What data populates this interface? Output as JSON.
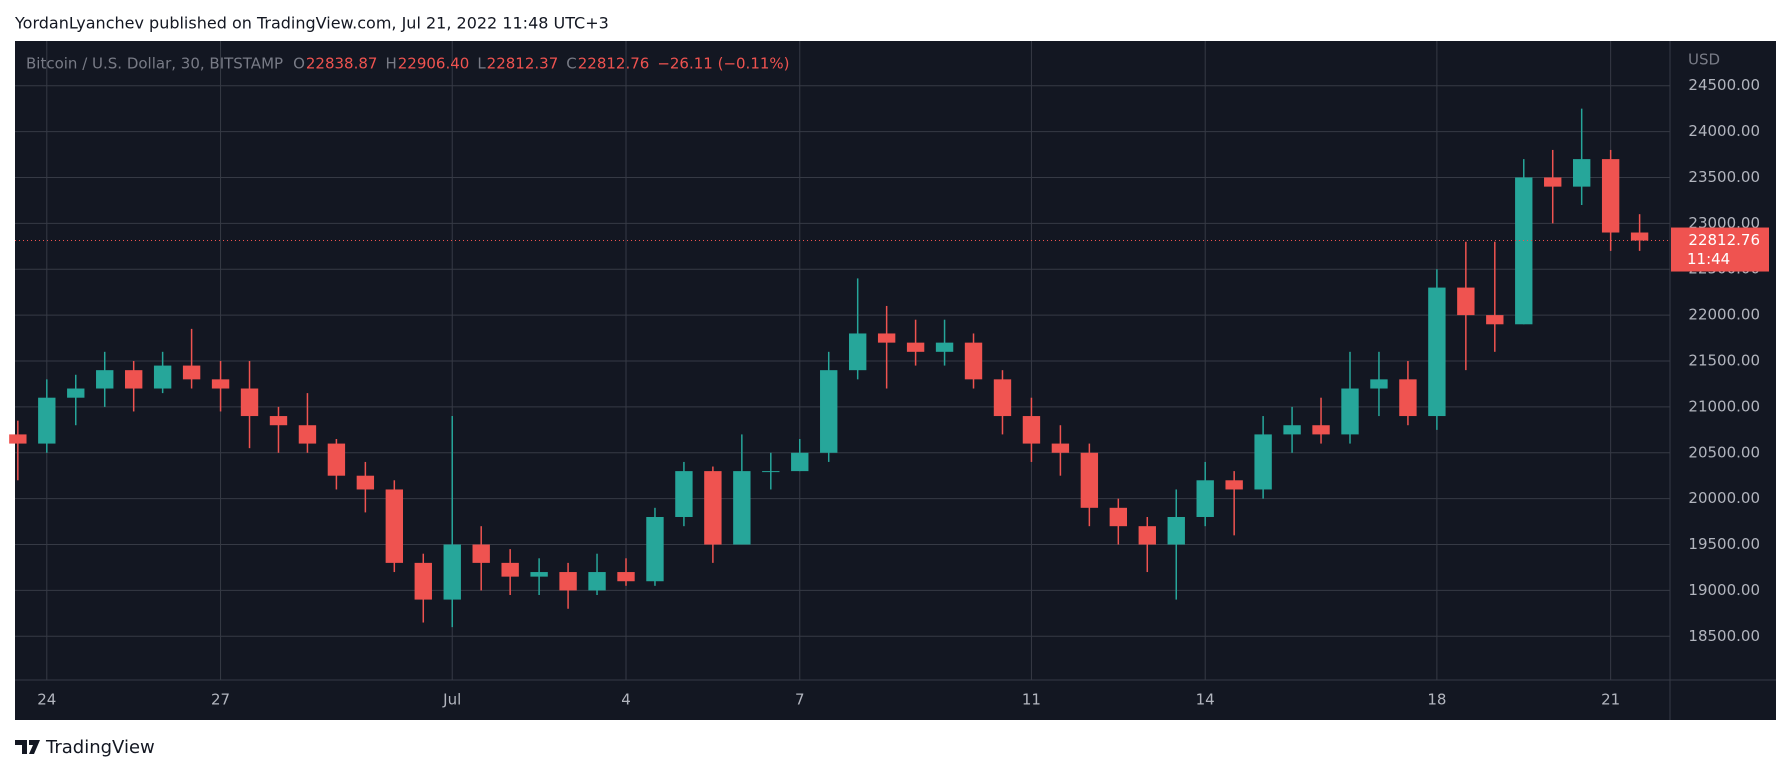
{
  "header": "YordanLyanchev published on TradingView.com, Jul 21, 2022 11:48 UTC+3",
  "footer": "TradingView",
  "chart_data": {
    "type": "candlestick",
    "symbol": "Bitcoin / U.S. Dollar, 30, BITSTAMP",
    "legend": [
      {
        "key": "O",
        "value": "22838.87"
      },
      {
        "key": "H",
        "value": "22906.40"
      },
      {
        "key": "L",
        "value": "22812.37"
      },
      {
        "key": "C",
        "value": "22812.76"
      }
    ],
    "change": "−26.11 (−0.11%)",
    "currency": "USD",
    "countdown": "11:44",
    "up_color": "#26a69a",
    "down_color": "#ef5350",
    "grid": true,
    "categories": [
      null,
      "24",
      null,
      null,
      null,
      null,
      null,
      "27",
      null,
      null,
      null,
      null,
      null,
      null,
      null,
      "Jul",
      null,
      null,
      null,
      null,
      null,
      "4",
      null,
      null,
      null,
      null,
      null,
      "7",
      null,
      null,
      null,
      null,
      null,
      null,
      null,
      "11",
      null,
      null,
      null,
      null,
      null,
      "14",
      null,
      null,
      null,
      null,
      null,
      null,
      null,
      "18",
      null,
      null,
      null,
      null,
      null,
      "21",
      null
    ],
    "open": [
      20700,
      20600,
      21100,
      21200,
      21400,
      21200,
      21450,
      21300,
      21200,
      20900,
      20800,
      20600,
      20250,
      20100,
      19300,
      18900,
      19500,
      19300,
      19150,
      19200,
      19000,
      19200,
      19100,
      19800,
      20300,
      19500,
      20300,
      20300,
      20500,
      21400,
      21800,
      21700,
      21600,
      21700,
      21300,
      20900,
      20600,
      20500,
      19900,
      19700,
      19500,
      19800,
      20200,
      20100,
      20700,
      20800,
      20700,
      21200,
      21300,
      20900,
      22300,
      22000,
      21900,
      23500,
      23400,
      23700,
      22900
    ],
    "high": [
      20850,
      21300,
      21350,
      21600,
      21500,
      21600,
      21850,
      21500,
      21500,
      21000,
      21150,
      20650,
      20400,
      20200,
      19400,
      20900,
      19700,
      19450,
      19350,
      19300,
      19400,
      19350,
      19900,
      20400,
      20350,
      20700,
      20500,
      20650,
      21600,
      22400,
      22100,
      21950,
      21950,
      21800,
      21400,
      21100,
      20800,
      20600,
      20000,
      19800,
      20100,
      20400,
      20300,
      20900,
      21000,
      21100,
      21600,
      21600,
      21500,
      22500,
      22800,
      22800,
      23700,
      23800,
      24250,
      23800,
      23100
    ],
    "low": [
      20200,
      20500,
      20800,
      21000,
      20950,
      21150,
      21200,
      20950,
      20550,
      20500,
      20500,
      20100,
      19850,
      19200,
      18650,
      18600,
      19000,
      18950,
      18950,
      18800,
      18950,
      19050,
      19050,
      19700,
      19300,
      19500,
      20100,
      20300,
      20400,
      21300,
      21200,
      21450,
      21450,
      21200,
      20700,
      20400,
      20250,
      19700,
      19500,
      19200,
      18900,
      19700,
      19600,
      20000,
      20500,
      20600,
      20600,
      20900,
      20800,
      20750,
      21400,
      21600,
      21900,
      23000,
      23200,
      22700,
      22700
    ],
    "close": [
      20600,
      21100,
      21200,
      21400,
      21200,
      21450,
      21300,
      21200,
      20900,
      20800,
      20600,
      20250,
      20100,
      19300,
      18900,
      19500,
      19300,
      19150,
      19200,
      19000,
      19200,
      19100,
      19800,
      20300,
      19500,
      20300,
      20300,
      20500,
      21400,
      21800,
      21700,
      21600,
      21700,
      21300,
      20900,
      20600,
      20500,
      19900,
      19700,
      19500,
      19800,
      20200,
      20100,
      20700,
      20800,
      20700,
      21200,
      21300,
      20900,
      22300,
      22000,
      21900,
      23500,
      23400,
      23700,
      22900,
      22812.76
    ],
    "ylim": [
      18000,
      24700
    ],
    "yticks": [
      {
        "value": 18500,
        "label": "18500.00"
      },
      {
        "value": 19000,
        "label": "19000.00"
      },
      {
        "value": 19500,
        "label": "19500.00"
      },
      {
        "value": 20000,
        "label": "20000.00"
      },
      {
        "value": 20500,
        "label": "20500.00"
      },
      {
        "value": 21000,
        "label": "21000.00"
      },
      {
        "value": 21500,
        "label": "21500.00"
      },
      {
        "value": 22000,
        "label": "22000.00"
      },
      {
        "value": 22500,
        "label": "22500.00"
      },
      {
        "value": 23000,
        "label": "23000.00"
      },
      {
        "value": 23500,
        "label": "23500.00"
      },
      {
        "value": 24000,
        "label": "24000.00"
      },
      {
        "value": 24500,
        "label": "24500.00"
      }
    ]
  }
}
